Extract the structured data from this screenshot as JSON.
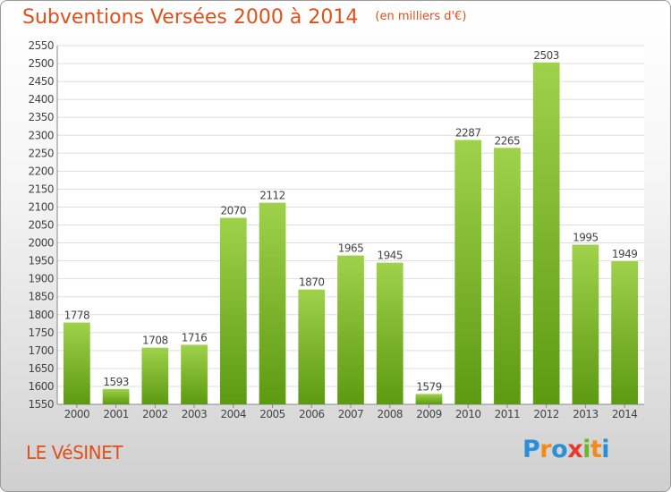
{
  "header": {
    "title": "Subventions Versées 2000 à 2014",
    "subtitle": "(en milliers d'€)"
  },
  "footer": {
    "commune": "LE VéSINET",
    "logo": {
      "letters": [
        "P",
        "r",
        "o",
        "x",
        "i",
        "t",
        "i"
      ],
      "colors": [
        "#2c8fd6",
        "#f08a1c",
        "#2c8fd6",
        "#e8392f",
        "#6fb52c",
        "#f08a1c",
        "#2c8fd6"
      ]
    }
  },
  "colors": {
    "bar_top": "#9fd24a",
    "bar_bottom": "#5c9a12",
    "grid": "#dddddd",
    "axis_text": "#444444",
    "accent": "#e0501a"
  },
  "chart_data": {
    "type": "bar",
    "title": "Subventions Versées 2000 à 2014",
    "subtitle": "(en milliers d'€)",
    "categories": [
      "2000",
      "2001",
      "2002",
      "2003",
      "2004",
      "2005",
      "2006",
      "2007",
      "2008",
      "2009",
      "2010",
      "2011",
      "2012",
      "2013",
      "2014"
    ],
    "values": [
      1778,
      1593,
      1708,
      1716,
      2070,
      2112,
      1870,
      1965,
      1945,
      1579,
      2287,
      2265,
      2503,
      1995,
      1949
    ],
    "ylim": [
      1550,
      2550
    ],
    "ytick_step": 50,
    "grid": true,
    "legend": "none"
  }
}
